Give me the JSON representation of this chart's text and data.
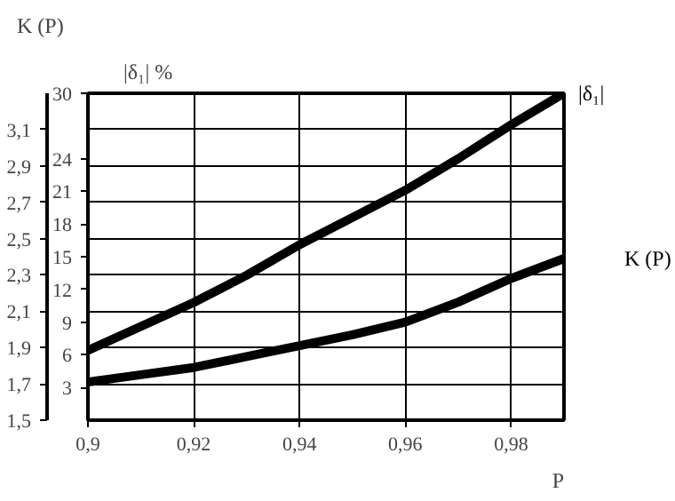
{
  "chart_data": {
    "type": "line",
    "xlabel": "P",
    "ylabel": "K (P)",
    "y2label": "|δ₁| %",
    "x": [
      0.9,
      0.91,
      0.92,
      0.93,
      0.94,
      0.95,
      0.96,
      0.97,
      0.98,
      0.99
    ],
    "series": [
      {
        "name": "|δ₁|",
        "color": "#000000",
        "axis": "y2",
        "values": [
          6.4,
          8.6,
          10.8,
          13.3,
          16.1,
          18.6,
          21.1,
          24.0,
          27.1,
          30
        ]
      },
      {
        "name": "K (P)",
        "color": "#000000",
        "values": [
          1.71,
          1.75,
          1.79,
          1.85,
          1.91,
          1.97,
          2.04,
          2.15,
          2.28,
          2.39
        ]
      }
    ],
    "xlim": [
      0.9,
      0.99
    ],
    "xticks": [
      {
        "value": 0.9,
        "label": "0,9"
      },
      {
        "value": 0.92,
        "label": "0,92"
      },
      {
        "value": 0.94,
        "label": "0,94"
      },
      {
        "value": 0.96,
        "label": "0,96"
      },
      {
        "value": 0.98,
        "label": "0,98"
      }
    ],
    "ylim": [
      1.5,
      3.3
    ],
    "yticks": [
      {
        "value": 1.5,
        "label": "1,5"
      },
      {
        "value": 1.7,
        "label": "1,7"
      },
      {
        "value": 1.9,
        "label": "1,9"
      },
      {
        "value": 2.1,
        "label": "2,1"
      },
      {
        "value": 2.3,
        "label": "2,3"
      },
      {
        "value": 2.5,
        "label": "2,5"
      },
      {
        "value": 2.7,
        "label": "2,7"
      },
      {
        "value": 2.9,
        "label": "2,9"
      },
      {
        "value": 3.1,
        "label": "3,1"
      }
    ],
    "y2lim": [
      0,
      30
    ],
    "y2ticks": [
      3,
      6,
      9,
      12,
      15,
      18,
      21,
      24,
      30
    ],
    "grid": true,
    "line_style": "solid"
  }
}
